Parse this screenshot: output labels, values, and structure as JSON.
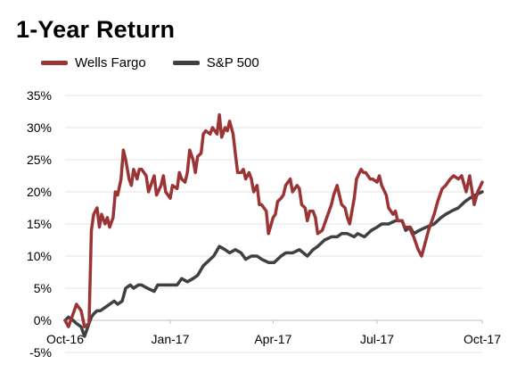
{
  "chart_data": {
    "type": "line",
    "title": "1-Year Return",
    "xlabel": "",
    "ylabel": "",
    "ylim": [
      -5,
      35
    ],
    "yticks": [
      -5,
      0,
      5,
      10,
      15,
      20,
      25,
      30,
      35
    ],
    "ytick_labels": [
      "-5%",
      "0%",
      "5%",
      "10%",
      "15%",
      "20%",
      "25%",
      "30%",
      "35%"
    ],
    "xlim": [
      "2016-10-17",
      "2017-10-17"
    ],
    "xticks": [
      "2016-10-17",
      "2017-01-17",
      "2017-04-17",
      "2017-07-17",
      "2017-10-17"
    ],
    "xtick_labels": [
      "Oct-16",
      "Jan-17",
      "Apr-17",
      "Jul-17",
      "Oct-17"
    ],
    "grid": {
      "horizontal": true,
      "vertical": false
    },
    "legend_position": "top-left",
    "series": [
      {
        "name": "Wells Fargo",
        "color": "#9b3535",
        "points": [
          [
            "2016-10-17",
            0
          ],
          [
            "2016-10-20",
            -1
          ],
          [
            "2016-10-24",
            1
          ],
          [
            "2016-10-27",
            2.5
          ],
          [
            "2016-10-31",
            1.5
          ],
          [
            "2016-11-03",
            -1
          ],
          [
            "2016-11-07",
            -0.5
          ],
          [
            "2016-11-09",
            14
          ],
          [
            "2016-11-11",
            16.5
          ],
          [
            "2016-11-14",
            17.5
          ],
          [
            "2016-11-16",
            14.5
          ],
          [
            "2016-11-18",
            16.5
          ],
          [
            "2016-11-21",
            15
          ],
          [
            "2016-11-23",
            16
          ],
          [
            "2016-11-25",
            14.5
          ],
          [
            "2016-11-28",
            16
          ],
          [
            "2016-11-30",
            20
          ],
          [
            "2016-12-02",
            19.5
          ],
          [
            "2016-12-05",
            22
          ],
          [
            "2016-12-07",
            26.5
          ],
          [
            "2016-12-09",
            25
          ],
          [
            "2016-12-12",
            22
          ],
          [
            "2016-12-14",
            21
          ],
          [
            "2016-12-16",
            23.5
          ],
          [
            "2016-12-19",
            22
          ],
          [
            "2016-12-21",
            23.5
          ],
          [
            "2016-12-23",
            23.5
          ],
          [
            "2016-12-27",
            22.5
          ],
          [
            "2016-12-29",
            20
          ],
          [
            "2017-01-03",
            22.5
          ],
          [
            "2017-01-05",
            19.5
          ],
          [
            "2017-01-09",
            21
          ],
          [
            "2017-01-11",
            22.5
          ],
          [
            "2017-01-13",
            20
          ],
          [
            "2017-01-17",
            19
          ],
          [
            "2017-01-19",
            21
          ],
          [
            "2017-01-23",
            20.5
          ],
          [
            "2017-01-25",
            23
          ],
          [
            "2017-01-27",
            22
          ],
          [
            "2017-01-30",
            21.5
          ],
          [
            "2017-02-01",
            23
          ],
          [
            "2017-02-03",
            26.5
          ],
          [
            "2017-02-06",
            25
          ],
          [
            "2017-02-08",
            23
          ],
          [
            "2017-02-10",
            25.5
          ],
          [
            "2017-02-13",
            26
          ],
          [
            "2017-02-15",
            29
          ],
          [
            "2017-02-17",
            29.5
          ],
          [
            "2017-02-21",
            29
          ],
          [
            "2017-02-23",
            30
          ],
          [
            "2017-02-27",
            29
          ],
          [
            "2017-03-01",
            32
          ],
          [
            "2017-03-03",
            28.5
          ],
          [
            "2017-03-06",
            30
          ],
          [
            "2017-03-08",
            29.5
          ],
          [
            "2017-03-10",
            31
          ],
          [
            "2017-03-13",
            29
          ],
          [
            "2017-03-15",
            26
          ],
          [
            "2017-03-17",
            23
          ],
          [
            "2017-03-20",
            23
          ],
          [
            "2017-03-22",
            23.5
          ],
          [
            "2017-03-24",
            22
          ],
          [
            "2017-03-27",
            23
          ],
          [
            "2017-03-29",
            22
          ],
          [
            "2017-03-31",
            20
          ],
          [
            "2017-04-03",
            21
          ],
          [
            "2017-04-05",
            18
          ],
          [
            "2017-04-07",
            18
          ],
          [
            "2017-04-11",
            17
          ],
          [
            "2017-04-13",
            13.5
          ],
          [
            "2017-04-17",
            16
          ],
          [
            "2017-04-19",
            16.5
          ],
          [
            "2017-04-21",
            18.5
          ],
          [
            "2017-04-24",
            19
          ],
          [
            "2017-04-26",
            19.5
          ],
          [
            "2017-04-28",
            21
          ],
          [
            "2017-05-02",
            22
          ],
          [
            "2017-05-04",
            20
          ],
          [
            "2017-05-08",
            21
          ],
          [
            "2017-05-10",
            20.5
          ],
          [
            "2017-05-12",
            18
          ],
          [
            "2017-05-15",
            17.5
          ],
          [
            "2017-05-17",
            15.5
          ],
          [
            "2017-05-19",
            17
          ],
          [
            "2017-05-22",
            17
          ],
          [
            "2017-05-24",
            16
          ],
          [
            "2017-05-26",
            13.5
          ],
          [
            "2017-05-30",
            14
          ],
          [
            "2017-06-01",
            15
          ],
          [
            "2017-06-05",
            17
          ],
          [
            "2017-06-07",
            18
          ],
          [
            "2017-06-09",
            19.5
          ],
          [
            "2017-06-12",
            21
          ],
          [
            "2017-06-14",
            19.5
          ],
          [
            "2017-06-16",
            18
          ],
          [
            "2017-06-19",
            17.5
          ],
          [
            "2017-06-21",
            16
          ],
          [
            "2017-06-23",
            15
          ],
          [
            "2017-06-27",
            19
          ],
          [
            "2017-06-29",
            22
          ],
          [
            "2017-07-03",
            23.5
          ],
          [
            "2017-07-05",
            23
          ],
          [
            "2017-07-07",
            23
          ],
          [
            "2017-07-11",
            22
          ],
          [
            "2017-07-13",
            22
          ],
          [
            "2017-07-17",
            21.5
          ],
          [
            "2017-07-19",
            22.5
          ],
          [
            "2017-07-21",
            21
          ],
          [
            "2017-07-25",
            19.5
          ],
          [
            "2017-07-27",
            17.5
          ],
          [
            "2017-07-31",
            16.5
          ],
          [
            "2017-08-02",
            17
          ],
          [
            "2017-08-04",
            15.5
          ],
          [
            "2017-08-08",
            15.5
          ],
          [
            "2017-08-10",
            14.5
          ],
          [
            "2017-08-14",
            14.5
          ],
          [
            "2017-08-18",
            13
          ],
          [
            "2017-08-22",
            11
          ],
          [
            "2017-08-25",
            10
          ],
          [
            "2017-08-28",
            12
          ],
          [
            "2017-08-31",
            14
          ],
          [
            "2017-09-05",
            16.5
          ],
          [
            "2017-09-08",
            18.5
          ],
          [
            "2017-09-12",
            20.5
          ],
          [
            "2017-09-15",
            21
          ],
          [
            "2017-09-19",
            22
          ],
          [
            "2017-09-22",
            22.5
          ],
          [
            "2017-09-26",
            22
          ],
          [
            "2017-09-29",
            22.5
          ],
          [
            "2017-10-03",
            20
          ],
          [
            "2017-10-06",
            22.5
          ],
          [
            "2017-10-10",
            18
          ],
          [
            "2017-10-13",
            20
          ],
          [
            "2017-10-17",
            21.5
          ]
        ]
      },
      {
        "name": "S&P 500",
        "color": "#404040",
        "points": [
          [
            "2016-10-17",
            0
          ],
          [
            "2016-10-20",
            0.5
          ],
          [
            "2016-10-24",
            0
          ],
          [
            "2016-10-27",
            -0.5
          ],
          [
            "2016-10-31",
            -1
          ],
          [
            "2016-11-03",
            -2.5
          ],
          [
            "2016-11-07",
            -0.5
          ],
          [
            "2016-11-09",
            0.5
          ],
          [
            "2016-11-11",
            1
          ],
          [
            "2016-11-14",
            1.5
          ],
          [
            "2016-11-17",
            1.5
          ],
          [
            "2016-11-21",
            2
          ],
          [
            "2016-11-25",
            2.5
          ],
          [
            "2016-11-29",
            3
          ],
          [
            "2016-12-02",
            2.5
          ],
          [
            "2016-12-06",
            3
          ],
          [
            "2016-12-09",
            5
          ],
          [
            "2016-12-13",
            5.5
          ],
          [
            "2016-12-16",
            5
          ],
          [
            "2016-12-20",
            5.5
          ],
          [
            "2016-12-23",
            5.5
          ],
          [
            "2016-12-28",
            5
          ],
          [
            "2017-01-03",
            4.5
          ],
          [
            "2017-01-06",
            5.5
          ],
          [
            "2017-01-10",
            5.5
          ],
          [
            "2017-01-13",
            5.5
          ],
          [
            "2017-01-18",
            5.5
          ],
          [
            "2017-01-23",
            5.5
          ],
          [
            "2017-01-27",
            6.5
          ],
          [
            "2017-02-01",
            6
          ],
          [
            "2017-02-06",
            6.5
          ],
          [
            "2017-02-10",
            7
          ],
          [
            "2017-02-15",
            8.5
          ],
          [
            "2017-02-21",
            9.5
          ],
          [
            "2017-02-24",
            10
          ],
          [
            "2017-03-01",
            11.5
          ],
          [
            "2017-03-06",
            11
          ],
          [
            "2017-03-10",
            10.5
          ],
          [
            "2017-03-15",
            11
          ],
          [
            "2017-03-20",
            10.5
          ],
          [
            "2017-03-24",
            9.5
          ],
          [
            "2017-03-29",
            10
          ],
          [
            "2017-04-03",
            10
          ],
          [
            "2017-04-07",
            9.5
          ],
          [
            "2017-04-13",
            9
          ],
          [
            "2017-04-18",
            9
          ],
          [
            "2017-04-24",
            10
          ],
          [
            "2017-04-28",
            10.5
          ],
          [
            "2017-05-04",
            10.5
          ],
          [
            "2017-05-10",
            11
          ],
          [
            "2017-05-17",
            10
          ],
          [
            "2017-05-22",
            11
          ],
          [
            "2017-05-26",
            11.5
          ],
          [
            "2017-06-01",
            12.5
          ],
          [
            "2017-06-07",
            13
          ],
          [
            "2017-06-12",
            13
          ],
          [
            "2017-06-16",
            13.5
          ],
          [
            "2017-06-21",
            13.5
          ],
          [
            "2017-06-27",
            13
          ],
          [
            "2017-06-30",
            13.5
          ],
          [
            "2017-07-06",
            13
          ],
          [
            "2017-07-12",
            14
          ],
          [
            "2017-07-17",
            14.5
          ],
          [
            "2017-07-21",
            15
          ],
          [
            "2017-07-27",
            15
          ],
          [
            "2017-08-02",
            15.5
          ],
          [
            "2017-08-08",
            15.5
          ],
          [
            "2017-08-11",
            14
          ],
          [
            "2017-08-15",
            14.5
          ],
          [
            "2017-08-18",
            13.5
          ],
          [
            "2017-08-23",
            14
          ],
          [
            "2017-08-29",
            14.5
          ],
          [
            "2017-09-05",
            15
          ],
          [
            "2017-09-11",
            16
          ],
          [
            "2017-09-15",
            16.5
          ],
          [
            "2017-09-20",
            17
          ],
          [
            "2017-09-26",
            17.5
          ],
          [
            "2017-10-02",
            18.5
          ],
          [
            "2017-10-06",
            19
          ],
          [
            "2017-10-11",
            19.5
          ],
          [
            "2017-10-17",
            20
          ]
        ]
      }
    ]
  }
}
